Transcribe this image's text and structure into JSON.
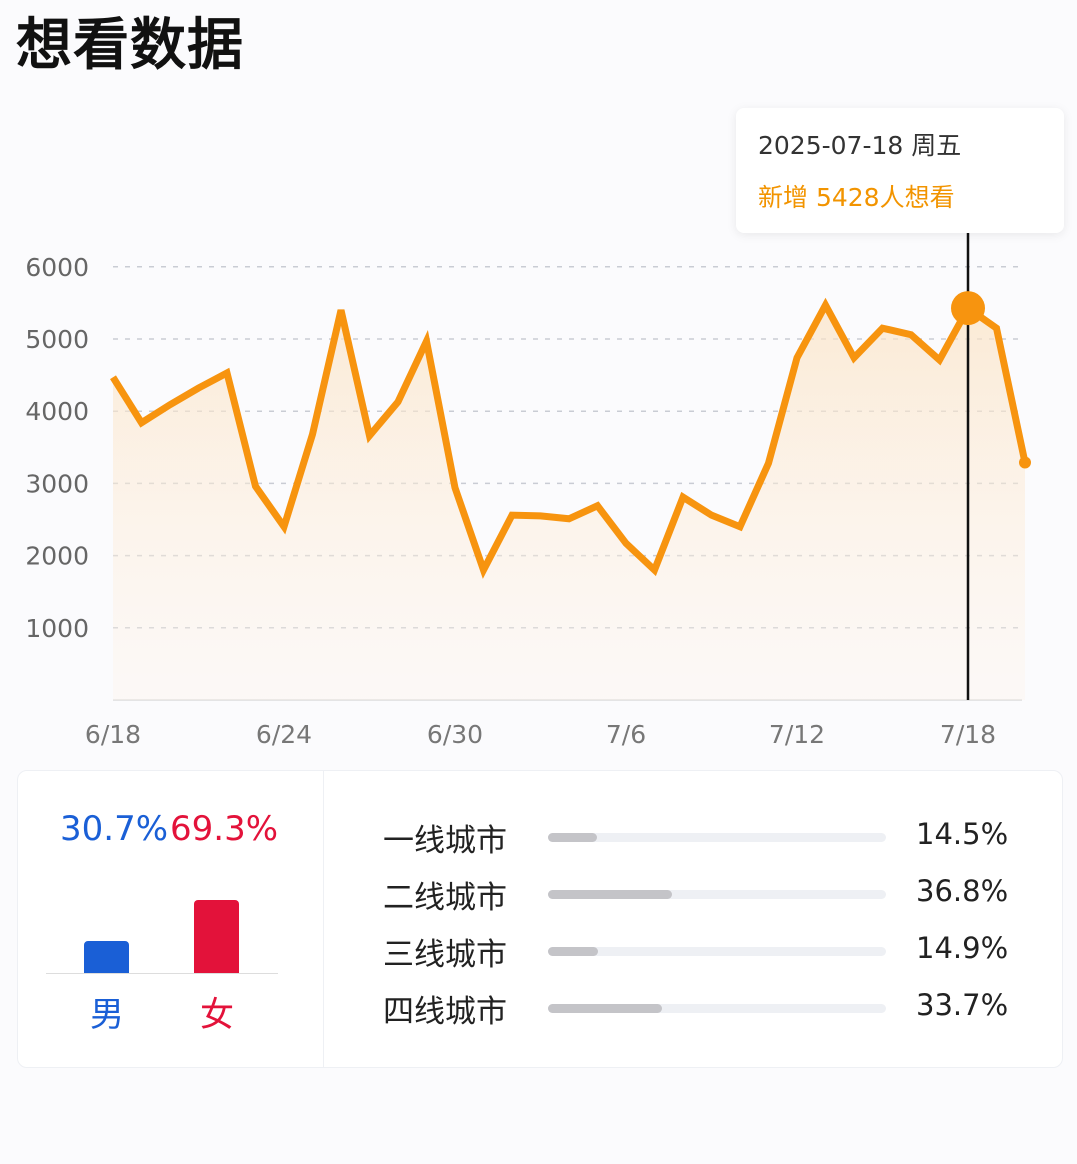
{
  "title": "想看数据",
  "tooltip": {
    "date": "2025-07-18 周五",
    "value": "新增 5428人想看"
  },
  "chart_data": {
    "type": "area",
    "x": [
      "6/18",
      "6/19",
      "6/20",
      "6/21",
      "6/22",
      "6/23",
      "6/24",
      "6/25",
      "6/26",
      "6/27",
      "6/28",
      "6/29",
      "6/30",
      "7/1",
      "7/2",
      "7/3",
      "7/4",
      "7/5",
      "7/6",
      "7/7",
      "7/8",
      "7/9",
      "7/10",
      "7/11",
      "7/12",
      "7/13",
      "7/14",
      "7/15",
      "7/16",
      "7/17",
      "7/18",
      "7/19",
      "7/20"
    ],
    "values": [
      4470,
      3840,
      4090,
      4320,
      4530,
      2960,
      2400,
      3680,
      5400,
      3660,
      4130,
      4970,
      2940,
      1800,
      2560,
      2550,
      2510,
      2690,
      2170,
      1800,
      2810,
      2560,
      2400,
      3280,
      4740,
      5470,
      4740,
      5150,
      5060,
      4710,
      5428,
      5150,
      3290
    ],
    "ylim": [
      0,
      6000
    ],
    "yticks": [
      "1000",
      "2000",
      "3000",
      "4000",
      "5000",
      "6000"
    ],
    "xticks": [
      "6/18",
      "6/24",
      "6/30",
      "7/6",
      "7/12",
      "7/18"
    ],
    "highlight": "7/18",
    "grid": true,
    "color": "#f7940f"
  },
  "gender": {
    "male_pct": "30.7%",
    "female_pct": "69.3%",
    "male_label": "男",
    "female_label": "女",
    "male_value": 30.7,
    "female_value": 69.3,
    "male_color": "#1a5fd6",
    "female_color": "#e3123a"
  },
  "cities": [
    {
      "label": "一线城市",
      "pct": "14.5%",
      "value": 14.5
    },
    {
      "label": "二线城市",
      "pct": "36.8%",
      "value": 36.8
    },
    {
      "label": "三线城市",
      "pct": "14.9%",
      "value": 14.9
    },
    {
      "label": "四线城市",
      "pct": "33.7%",
      "value": 33.7
    }
  ]
}
